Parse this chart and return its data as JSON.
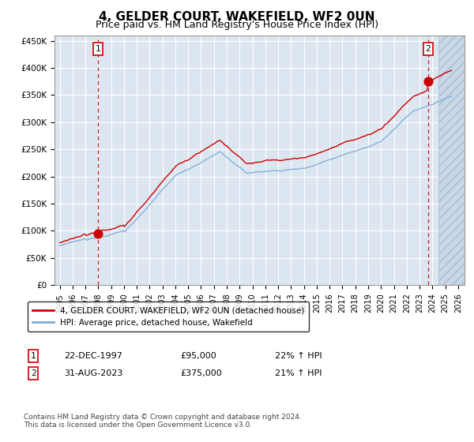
{
  "title": "4, GELDER COURT, WAKEFIELD, WF2 0UN",
  "subtitle": "Price paid vs. HM Land Registry's House Price Index (HPI)",
  "ylabel_ticks": [
    "£0",
    "£50K",
    "£100K",
    "£150K",
    "£200K",
    "£250K",
    "£300K",
    "£350K",
    "£400K",
    "£450K"
  ],
  "ytick_vals": [
    0,
    50000,
    100000,
    150000,
    200000,
    250000,
    300000,
    350000,
    400000,
    450000
  ],
  "ylim": [
    0,
    460000
  ],
  "hpi_line_color": "#7aaadd",
  "price_line_color": "#cc0000",
  "bg_color": "#dce6f0",
  "grid_color": "#ffffff",
  "purchase1_year": 1997.97,
  "purchase1_price": 95000,
  "purchase2_year": 2023.67,
  "purchase2_price": 375000,
  "legend_label1": "4, GELDER COURT, WAKEFIELD, WF2 0UN (detached house)",
  "legend_label2": "HPI: Average price, detached house, Wakefield",
  "annotation1_date": "22-DEC-1997",
  "annotation1_price": "£95,000",
  "annotation1_hpi": "22% ↑ HPI",
  "annotation2_date": "31-AUG-2023",
  "annotation2_price": "£375,000",
  "annotation2_hpi": "21% ↑ HPI",
  "footer": "Contains HM Land Registry data © Crown copyright and database right 2024.\nThis data is licensed under the Open Government Licence v3.0."
}
